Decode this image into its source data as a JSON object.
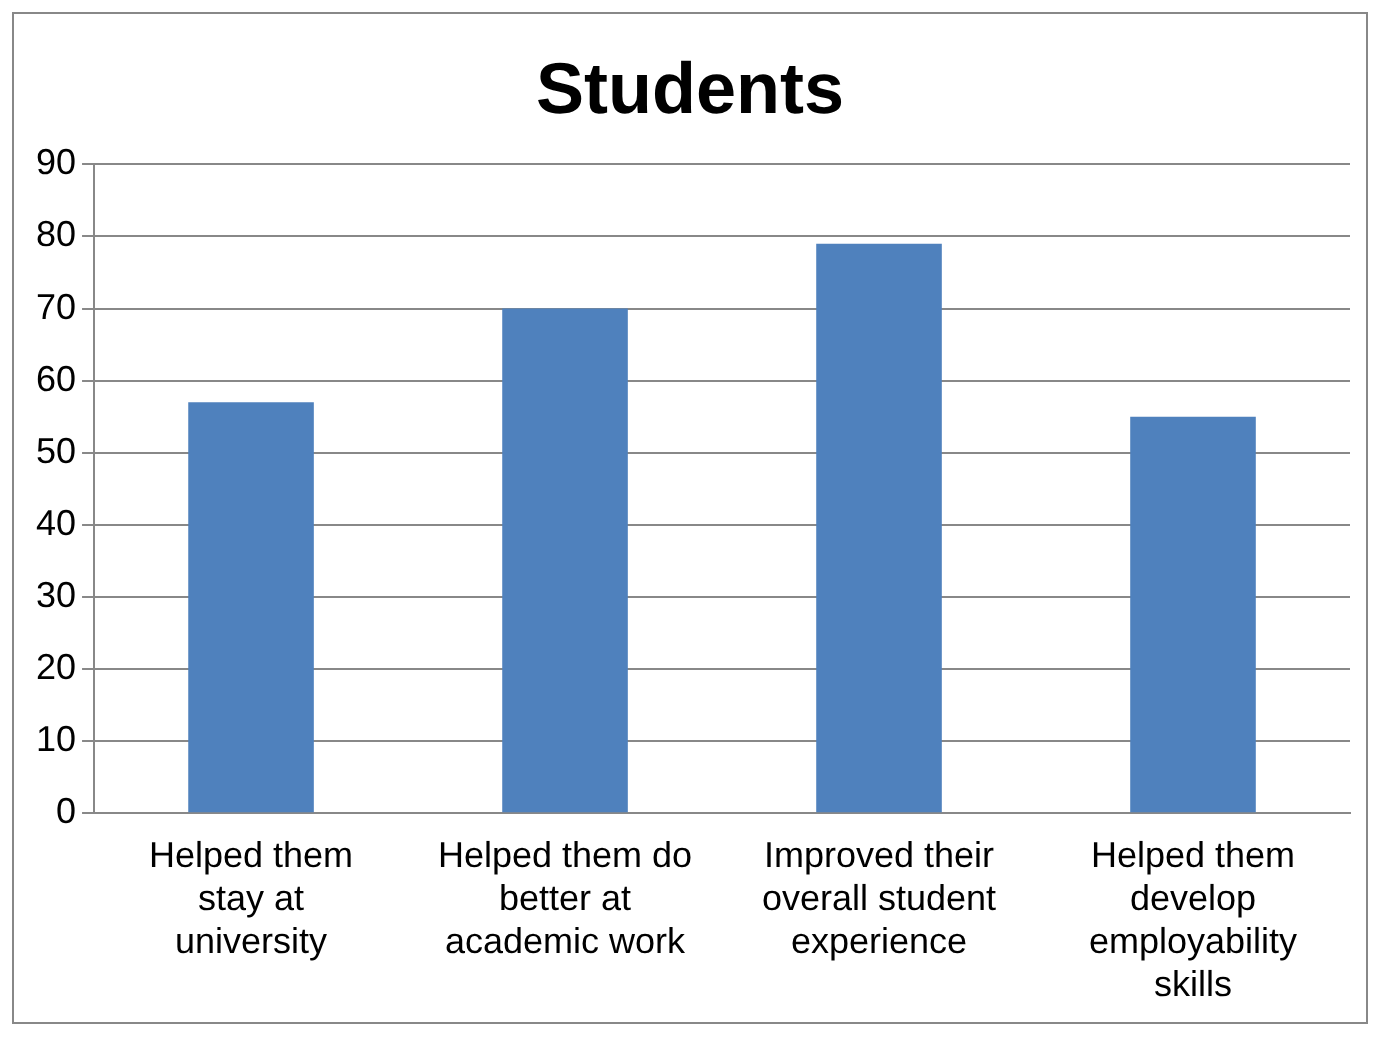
{
  "chart_data": {
    "type": "bar",
    "title": "Students",
    "categories": [
      "Helped them stay at university",
      "Helped them do better at academic work",
      "Improved their overall student experience",
      "Helped them develop employability skills"
    ],
    "values": [
      57,
      70,
      79,
      55
    ],
    "color": "#4f81bd",
    "ylim": [
      0,
      90
    ],
    "yticks": [
      0,
      10,
      20,
      30,
      40,
      50,
      60,
      70,
      80,
      90
    ],
    "grid": "y",
    "legend": false
  }
}
